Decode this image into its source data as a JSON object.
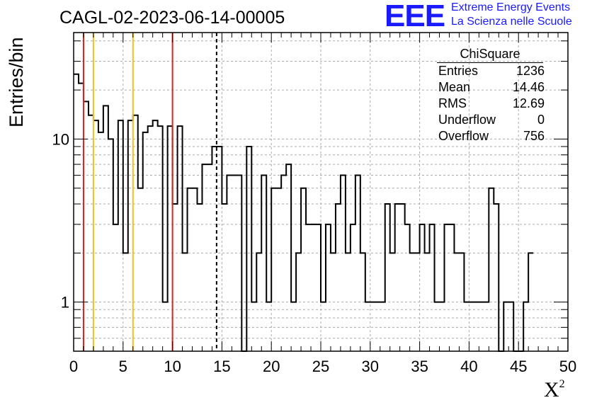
{
  "title": "CAGL-02-2023-06-14-00005",
  "logo": {
    "mark": "EEE",
    "line1": "Extreme Energy Events",
    "line2": "La Scienza nelle Scuole",
    "color": "#1a1aff"
  },
  "stats": {
    "title": "ChiSquare",
    "rows": [
      {
        "label": "Entries",
        "value": "1236"
      },
      {
        "label": "Mean",
        "value": "14.46"
      },
      {
        "label": "RMS",
        "value": "12.69"
      },
      {
        "label": "Underflow",
        "value": "0"
      },
      {
        "label": "Overflow",
        "value": "756"
      }
    ]
  },
  "chart_data": {
    "type": "histogram",
    "xlabel": "X",
    "xlabel_sup": "2",
    "ylabel": "Entries/bin",
    "xlim": [
      0,
      50
    ],
    "ylim": [
      0.5,
      45
    ],
    "yscale": "log",
    "grid": true,
    "bin_width": 0.5,
    "x_ticks": [
      0,
      5,
      10,
      15,
      20,
      25,
      30,
      35,
      40,
      45,
      50
    ],
    "y_ticks": [
      {
        "value": 1,
        "label": "1"
      },
      {
        "value": 10,
        "label": "10"
      }
    ],
    "values": [
      25,
      22,
      17,
      14,
      13,
      11,
      16,
      10,
      3,
      13,
      2,
      13,
      14,
      5,
      11,
      12,
      13,
      12,
      1,
      12,
      4,
      12,
      2,
      5,
      5,
      4,
      7,
      7,
      9,
      9,
      4,
      6,
      6,
      6,
      0,
      9,
      1,
      2,
      6,
      1,
      5,
      5,
      6,
      7,
      1,
      2,
      5,
      3,
      3,
      3,
      1,
      3,
      2,
      4,
      6,
      2,
      3,
      6,
      2,
      1,
      1,
      1,
      1,
      4,
      2,
      4,
      4,
      3,
      2,
      2,
      3,
      2,
      3,
      1,
      1,
      3,
      3,
      2,
      2,
      1,
      1,
      1,
      1,
      1,
      5,
      4,
      0,
      1,
      1,
      0,
      0,
      1,
      2
    ],
    "lines": [
      {
        "x": 1,
        "color": "#e0201a",
        "style": "solid"
      },
      {
        "x": 2,
        "color": "#f0c020",
        "style": "solid"
      },
      {
        "x": 6,
        "color": "#f0c020",
        "style": "solid"
      },
      {
        "x": 10,
        "color": "#e0201a",
        "style": "solid"
      },
      {
        "x": 14.46,
        "color": "#000000",
        "style": "dashed"
      }
    ]
  }
}
